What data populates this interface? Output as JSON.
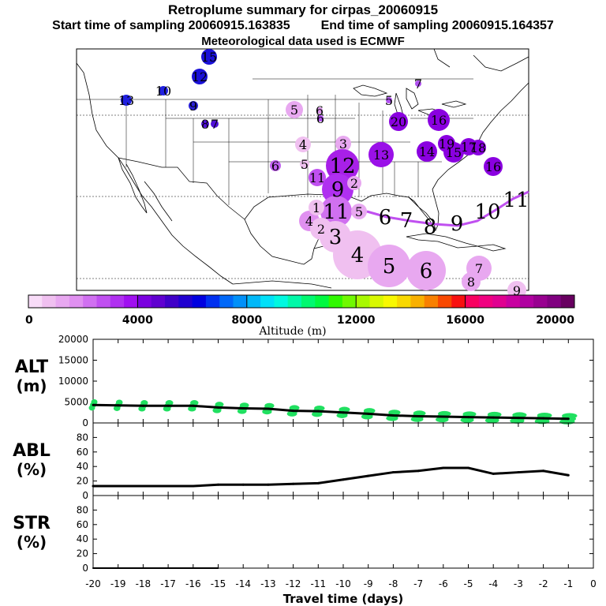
{
  "header": {
    "title": "Retroplume summary for cirpas_20060915",
    "start_label": "Start time of sampling 20060915.163835",
    "end_label": "End time of sampling 20060915.164357",
    "met_label": "Meteorological data used is ECMWF"
  },
  "colorbar": {
    "ticks": [
      "0",
      "4000",
      "8000",
      "12000",
      "16000",
      "20000"
    ],
    "label": "Altitude (m)",
    "range": [
      0,
      20000
    ],
    "colors": [
      "#f8dcf8",
      "#f0c0f0",
      "#e8a8f0",
      "#e090f0",
      "#d070f0",
      "#c050f0",
      "#b030f0",
      "#a010f0",
      "#7a00e0",
      "#6000d0",
      "#4000c8",
      "#2000d0",
      "#0000e0",
      "#0030f0",
      "#0068f8",
      "#0090f8",
      "#00b8f8",
      "#00e0f8",
      "#00f8e0",
      "#00f8a8",
      "#00f870",
      "#00f840",
      "#30f800",
      "#70f800",
      "#a8f800",
      "#d8f800",
      "#f8f800",
      "#f8d800",
      "#f8b000",
      "#f88000",
      "#f84800",
      "#f81010",
      "#f80060",
      "#f00080",
      "#e00090",
      "#c800a0",
      "#b000a0",
      "#980090",
      "#800080",
      "#680060"
    ]
  },
  "map": {
    "points": [
      {
        "label": "13",
        "size": 7,
        "altitude": 4200,
        "color": "#2020e0"
      },
      {
        "label": "10",
        "size": 6,
        "altitude": 4300,
        "color": "#2020e0"
      },
      {
        "label": "15",
        "size": 10,
        "altitude": 4500,
        "color": "#1a10d8"
      },
      {
        "label": "12",
        "size": 10,
        "altitude": 4500,
        "color": "#1a10d8"
      },
      {
        "label": "9",
        "size": 6,
        "altitude": 4300,
        "color": "#2a20d8"
      },
      {
        "label": "8",
        "size": 5,
        "altitude": 4000,
        "color": "#5010d8"
      },
      {
        "label": "7",
        "size": 5,
        "altitude": 4000,
        "color": "#5010d8"
      },
      {
        "label": "7",
        "size": 4,
        "altitude": 2800,
        "color": "#b050f0"
      },
      {
        "label": "6",
        "size": 4,
        "altitude": 2800,
        "color": "#b050f0"
      },
      {
        "label": "5",
        "size": 4,
        "altitude": 2800,
        "color": "#b050f0"
      },
      {
        "label": "5",
        "size": 11,
        "altitude": 1500,
        "color": "#e8a8f0"
      },
      {
        "label": "6",
        "size": 4,
        "altitude": 1500,
        "color": "#d890e8"
      },
      {
        "label": "4",
        "size": 10,
        "altitude": 1000,
        "color": "#f0c0f0"
      },
      {
        "label": "6",
        "size": 7,
        "altitude": 2500,
        "color": "#c060f0"
      },
      {
        "label": "5",
        "size": 6,
        "altitude": 1000,
        "color": "#f0c0f0"
      },
      {
        "label": "3",
        "size": 10,
        "altitude": 1200,
        "color": "#e8a8f0"
      },
      {
        "label": "20",
        "size": 12,
        "altitude": 3500,
        "color": "#8a00e0"
      },
      {
        "label": "16",
        "size": 14,
        "altitude": 3500,
        "color": "#8a00e0"
      },
      {
        "label": "13",
        "size": 16,
        "altitude": 3300,
        "color": "#9a10e8"
      },
      {
        "label": "14",
        "size": 13,
        "altitude": 3500,
        "color": "#8a00e0"
      },
      {
        "label": "19",
        "size": 11,
        "altitude": 3500,
        "color": "#8a00e0"
      },
      {
        "label": "15",
        "size": 13,
        "altitude": 3500,
        "color": "#8a00e0"
      },
      {
        "label": "17",
        "size": 11,
        "altitude": 3500,
        "color": "#8a00e0"
      },
      {
        "label": "18",
        "size": 10,
        "altitude": 3500,
        "color": "#8a00e0"
      },
      {
        "label": "16",
        "size": 12,
        "altitude": 3800,
        "color": "#8a00e0"
      },
      {
        "label": "12",
        "size": 21,
        "altitude": 3000,
        "color": "#a820e8"
      },
      {
        "label": "11",
        "size": 11,
        "altitude": 2500,
        "color": "#c050f0"
      },
      {
        "label": "9",
        "size": 20,
        "altitude": 2200,
        "color": "#b030f0"
      },
      {
        "label": "2",
        "size": 9,
        "altitude": 1200,
        "color": "#e8a8f0"
      },
      {
        "label": "11",
        "size": 20,
        "altitude": 1500,
        "color": "#d070f0"
      },
      {
        "label": "5",
        "size": 10,
        "altitude": 1200,
        "color": "#e8a8f0"
      },
      {
        "label": "4",
        "size": 13,
        "altitude": 1500,
        "color": "#e090f0"
      },
      {
        "label": "1",
        "size": 10,
        "altitude": 1000,
        "color": "#f0c0f0"
      },
      {
        "label": "2",
        "size": 14,
        "altitude": 1000,
        "color": "#f0c0f0"
      },
      {
        "label": "3",
        "size": 20,
        "altitude": 800,
        "color": "#f0c0f0"
      },
      {
        "label": "4",
        "size": 31,
        "altitude": 800,
        "color": "#f0c0f0"
      },
      {
        "label": "5",
        "size": 27,
        "altitude": 1000,
        "color": "#e8a8f0"
      },
      {
        "label": "6",
        "size": 25,
        "altitude": 1000,
        "color": "#e8a8f0"
      },
      {
        "label": "7",
        "size": 16,
        "altitude": 1200,
        "color": "#e8a8f0"
      },
      {
        "label": "8",
        "size": 12,
        "altitude": 1200,
        "color": "#e8a8f0"
      },
      {
        "label": "9",
        "size": 12,
        "altitude": 1000,
        "color": "#f0c0f0"
      }
    ],
    "track_labels": [
      "6",
      "7",
      "8",
      "9",
      "10",
      "11"
    ],
    "track_color": "#c050f0"
  },
  "alt_panel": {
    "label": "ALT (m)",
    "label_line1": "ALT",
    "label_line2": "(m)",
    "y_ticks": [
      "0",
      "5000",
      "10000",
      "15000",
      "20000"
    ],
    "ylim": [
      0,
      20000
    ],
    "days": [
      -20,
      -19,
      -18,
      -17,
      -16,
      -15,
      -14,
      -13,
      -12,
      -11,
      -10,
      -9,
      -8,
      -7,
      -6,
      -5,
      -4,
      -3,
      -2,
      -1
    ],
    "median": [
      4300,
      4200,
      4100,
      4100,
      4100,
      3700,
      3500,
      3400,
      2900,
      2800,
      2500,
      2200,
      1800,
      1600,
      1500,
      1400,
      1300,
      1200,
      1100,
      1000
    ],
    "particle_color": "#20e060"
  },
  "abl_panel": {
    "label_line1": "ABL",
    "label_line2": "(%)",
    "y_ticks": [
      "0",
      "20",
      "40",
      "60",
      "80"
    ],
    "ylim": [
      0,
      100
    ],
    "days": [
      -20,
      -19,
      -18,
      -17,
      -16,
      -15,
      -14,
      -13,
      -12,
      -11,
      -10,
      -9,
      -8,
      -7,
      -6,
      -5,
      -4,
      -3,
      -2,
      -1
    ],
    "values": [
      13,
      13,
      13,
      13,
      13,
      15,
      15,
      15,
      16,
      17,
      22,
      27,
      32,
      34,
      38,
      38,
      30,
      32,
      34,
      28
    ]
  },
  "str_panel": {
    "label_line1": "STR",
    "label_line2": "(%)",
    "y_ticks": [
      "0",
      "20",
      "40",
      "60",
      "80"
    ],
    "ylim": [
      0,
      100
    ],
    "days": [
      -20,
      -19,
      -18,
      -17,
      -16,
      -15
    ],
    "values": [
      0,
      0,
      0,
      0,
      0,
      0
    ]
  },
  "x_axis": {
    "ticks": [
      "-20",
      "-19",
      "-18",
      "-17",
      "-16",
      "-15",
      "-14",
      "-13",
      "-12",
      "-11",
      "-10",
      "-9",
      "-8",
      "-7",
      "-6",
      "-5",
      "-4",
      "-3",
      "-2",
      "-1",
      "0"
    ],
    "xlim": [
      -20,
      0
    ],
    "label": "Travel time (days)"
  }
}
